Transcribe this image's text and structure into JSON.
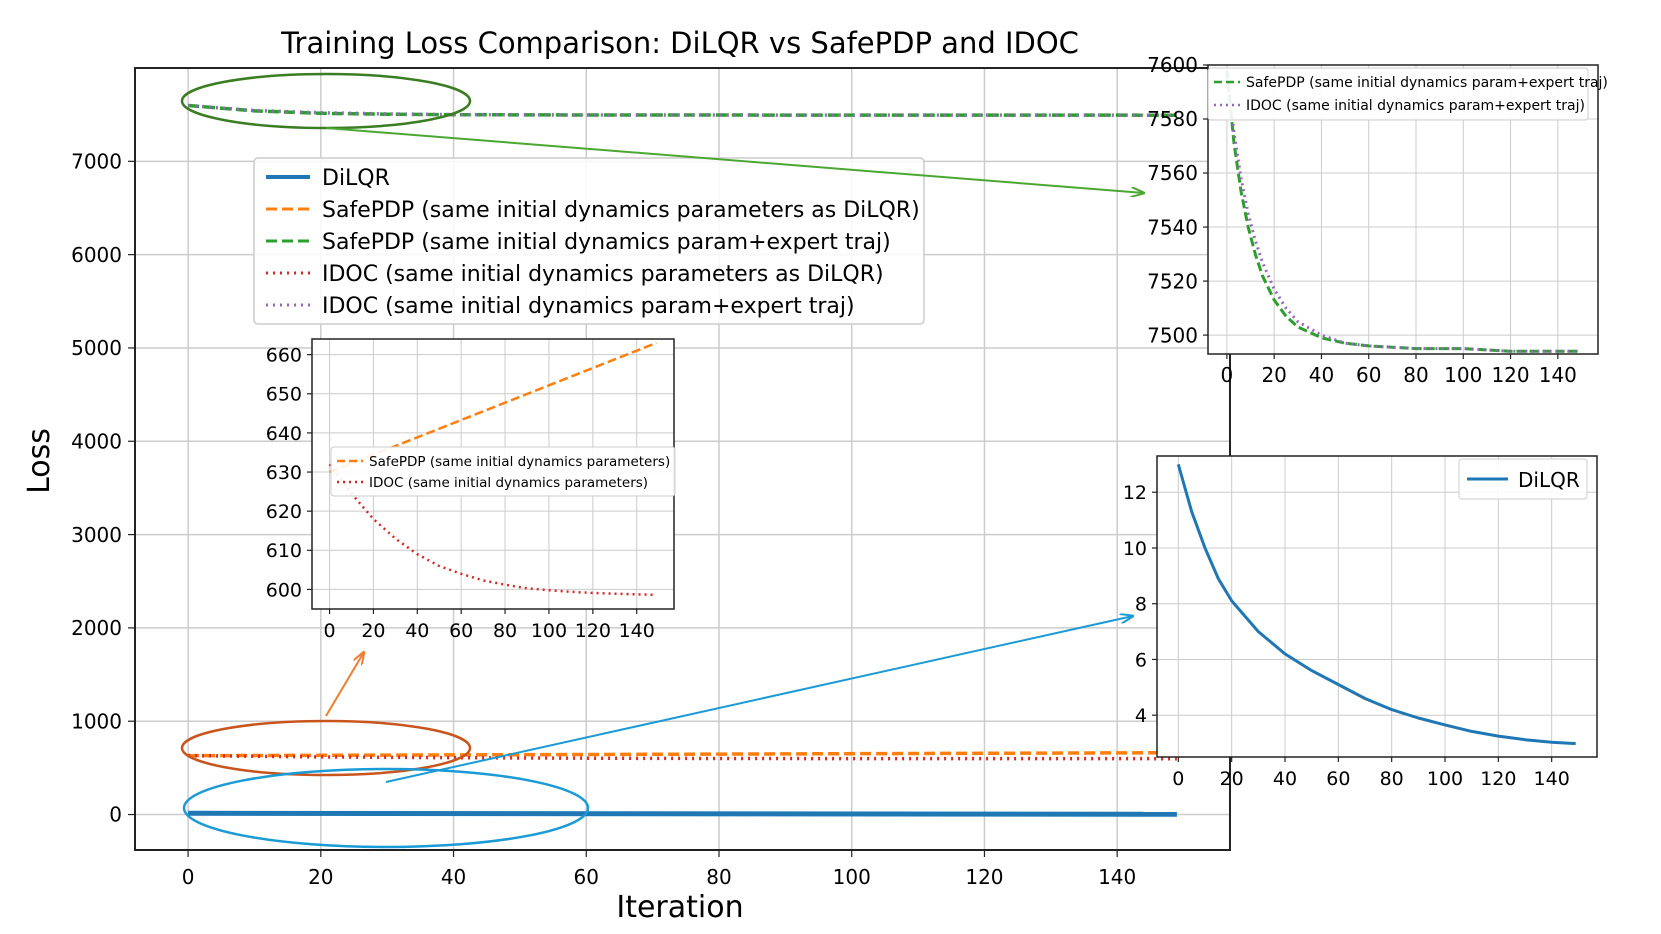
{
  "chart_data": [
    {
      "id": "main",
      "type": "line",
      "title": "Training Loss Comparison: DiLQR vs SafePDP and IDOC",
      "xlabel": "Iteration",
      "ylabel": "Loss",
      "xlim": [
        -8,
        157
      ],
      "ylim": [
        -380,
        8000
      ],
      "xticks": [
        0,
        20,
        40,
        60,
        80,
        100,
        120,
        140
      ],
      "yticks": [
        0,
        1000,
        2000,
        3000,
        4000,
        5000,
        6000,
        7000
      ],
      "grid": true,
      "legend_position": "upper-center",
      "series": [
        {
          "name": "DiLQR",
          "color": "#1f77b4",
          "style": "solid",
          "x": [
            0,
            149
          ],
          "y": [
            13,
            3
          ]
        },
        {
          "name": "SafePDP (same initial dynamics parameters as DiLQR)",
          "color": "#ff7f0e",
          "style": "dashed",
          "x": [
            0,
            149
          ],
          "y": [
            630,
            663
          ]
        },
        {
          "name": "SafePDP (same initial dynamics param+expert traj)",
          "color": "#2ca02c",
          "style": "dashed",
          "x": [
            0,
            10,
            20,
            30,
            40,
            60,
            100,
            149
          ],
          "y": [
            7598,
            7540,
            7515,
            7505,
            7500,
            7496,
            7495,
            7494
          ]
        },
        {
          "name": "IDOC (same initial dynamics parameters as DiLQR)",
          "color": "#d62728",
          "style": "dotted",
          "x": [
            0,
            20,
            40,
            60,
            80,
            100,
            120,
            149
          ],
          "y": [
            632,
            618,
            609,
            604,
            601,
            599.5,
            599,
            598.5
          ]
        },
        {
          "name": "IDOC (same initial dynamics param+expert traj)",
          "color": "#9467bd",
          "style": "dotted",
          "x": [
            0,
            10,
            20,
            30,
            40,
            60,
            100,
            149
          ],
          "y": [
            7598,
            7545,
            7520,
            7508,
            7501,
            7496,
            7495,
            7494
          ]
        }
      ]
    },
    {
      "id": "inset-top",
      "type": "line",
      "title": "",
      "xlim": [
        -8,
        157
      ],
      "ylim": [
        7493,
        7600
      ],
      "xticks": [
        0,
        20,
        40,
        60,
        80,
        100,
        120,
        140
      ],
      "yticks": [
        7500,
        7520,
        7540,
        7560,
        7580,
        7600
      ],
      "grid": true,
      "legend_position": "upper-right",
      "series": [
        {
          "name": "SafePDP (same initial dynamics param+expert traj)",
          "color": "#2ca02c",
          "style": "dashed",
          "x": [
            0,
            3,
            6,
            9,
            12,
            15,
            20,
            25,
            30,
            40,
            50,
            60,
            80,
            100,
            120,
            149
          ],
          "y": [
            7598,
            7571,
            7553,
            7540,
            7530,
            7522,
            7513,
            7507,
            7503,
            7499,
            7497,
            7496,
            7495,
            7495,
            7494,
            7494
          ]
        },
        {
          "name": "IDOC (same initial dynamics param+expert traj)",
          "color": "#9467bd",
          "style": "dotted",
          "x": [
            0,
            3,
            6,
            9,
            12,
            15,
            20,
            25,
            30,
            40,
            50,
            60,
            80,
            100,
            120,
            149
          ],
          "y": [
            7598,
            7575,
            7558,
            7545,
            7535,
            7527,
            7517,
            7510,
            7505,
            7500,
            7497,
            7496,
            7495,
            7495,
            7494,
            7494
          ]
        }
      ]
    },
    {
      "id": "inset-middle",
      "type": "line",
      "title": "",
      "xlim": [
        -8,
        157
      ],
      "ylim": [
        595,
        664
      ],
      "xticks": [
        0,
        20,
        40,
        60,
        80,
        100,
        120,
        140
      ],
      "yticks": [
        600,
        610,
        620,
        630,
        640,
        650,
        660
      ],
      "grid": true,
      "legend_position": "center-right",
      "series": [
        {
          "name": "SafePDP (same initial dynamics parameters)",
          "color": "#ff7f0e",
          "style": "dashed",
          "x": [
            0,
            149
          ],
          "y": [
            630,
            663
          ]
        },
        {
          "name": "IDOC (same initial dynamics parameters)",
          "color": "#d62728",
          "style": "dotted",
          "x": [
            0,
            10,
            20,
            30,
            40,
            50,
            60,
            70,
            80,
            90,
            100,
            110,
            120,
            130,
            149
          ],
          "y": [
            632,
            624.5,
            618,
            613,
            609,
            606,
            604,
            602.3,
            601.2,
            600.3,
            599.8,
            599.4,
            599.1,
            598.9,
            598.6
          ]
        }
      ]
    },
    {
      "id": "inset-bottom",
      "type": "line",
      "title": "",
      "xlim": [
        -8,
        157
      ],
      "ylim": [
        2.5,
        13.3
      ],
      "xticks": [
        0,
        20,
        40,
        60,
        80,
        100,
        120,
        140
      ],
      "yticks": [
        4,
        6,
        8,
        10,
        12
      ],
      "grid": true,
      "legend_position": "upper-right",
      "series": [
        {
          "name": "DiLQR",
          "color": "#1f77b4",
          "style": "solid",
          "x": [
            0,
            5,
            10,
            15,
            20,
            30,
            40,
            50,
            60,
            70,
            80,
            90,
            100,
            110,
            120,
            130,
            140,
            149
          ],
          "y": [
            13.0,
            11.3,
            10.0,
            8.9,
            8.1,
            7.0,
            6.2,
            5.6,
            5.1,
            4.6,
            4.2,
            3.9,
            3.65,
            3.42,
            3.25,
            3.12,
            3.03,
            2.98
          ]
        }
      ]
    }
  ]
}
